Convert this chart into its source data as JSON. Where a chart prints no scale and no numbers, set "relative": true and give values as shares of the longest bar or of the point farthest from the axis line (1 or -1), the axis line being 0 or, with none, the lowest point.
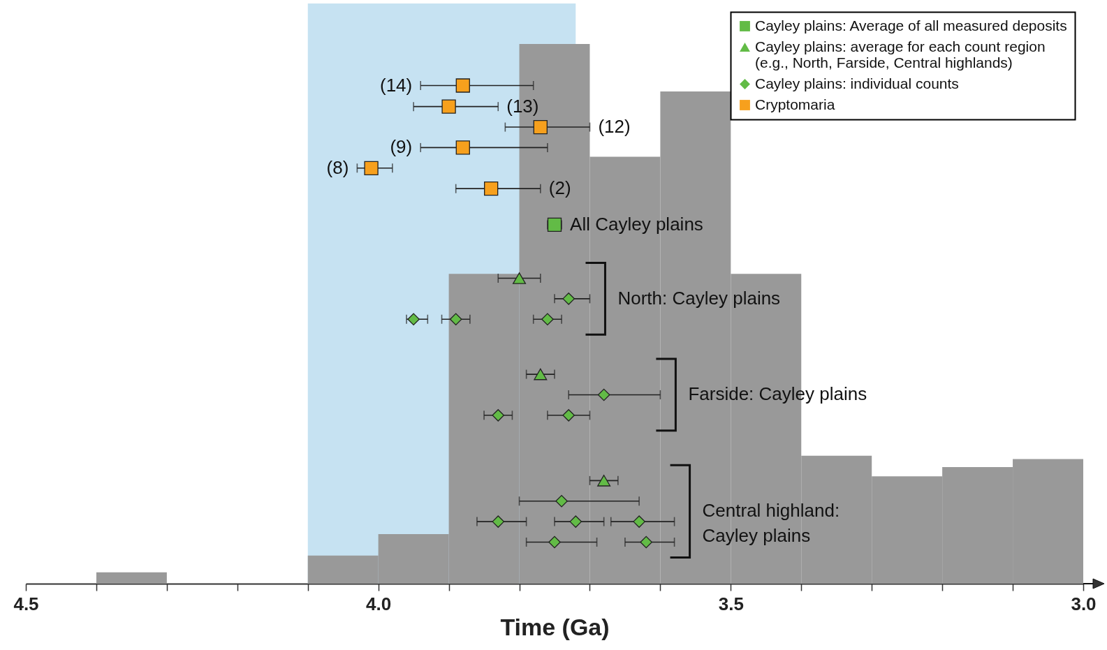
{
  "chart_data": {
    "type": "histogram",
    "xlabel": "Time (Ga)",
    "relative": true,
    "color": "#999999",
    "bins": [
      4.5,
      4.4,
      4.3,
      4.2,
      4.1,
      4.0,
      3.9,
      3.8,
      3.7,
      3.6,
      3.5,
      3.4,
      3.3,
      3.2,
      3.1,
      3.0
    ],
    "values": [
      0,
      0.021,
      0,
      0,
      0.052,
      0.092,
      0.574,
      1,
      0.791,
      0.912,
      0.574,
      0.237,
      0.199,
      0.216,
      0.231
    ],
    "xlim": [
      4.5,
      3.0
    ],
    "xticks": [
      4.5,
      {
        "value": 4.4,
        "label": null
      },
      {
        "value": 4.3,
        "label": null
      },
      {
        "value": 4.2,
        "label": null
      },
      {
        "value": 4.1,
        "label": null
      },
      {
        "value": 4,
        "label": "4.0"
      },
      {
        "value": 3.9,
        "label": null
      },
      {
        "value": 3.8,
        "label": null
      },
      {
        "value": 3.7,
        "label": null
      },
      {
        "value": 3.6,
        "label": null
      },
      3.5,
      {
        "value": 3.4,
        "label": null
      },
      {
        "value": 3.3,
        "label": null
      },
      {
        "value": 3.2,
        "label": null
      },
      {
        "value": 3.1,
        "label": null
      },
      {
        "value": 3,
        "label": "3.0"
      }
    ],
    "bands": [
      {
        "axis": "x",
        "from": 4.1,
        "to": 3.72,
        "color": "#c6e2f2"
      }
    ],
    "legend": "top right",
    "series": [
      {
        "name": "Cayley plains: Average of all measured deposits",
        "type": "scatter",
        "marker": "square",
        "color": "#62bb46",
        "x": [
          3.75
        ],
        "values": [
          0.665
        ],
        "xerrors": [
          0.01
        ]
      },
      {
        "name": "Cayley plains: average for each count region\n(e.g., North, Farside, Central highlands)",
        "type": "scatter",
        "marker": "triangle",
        "color": "#62bb46",
        "x": [
          3.8,
          3.77,
          3.68
        ],
        "values": [
          0.566,
          0.388,
          0.191
        ],
        "xerrors": [
          0.03,
          0.02,
          0.02
        ]
      },
      {
        "name": "Cayley plains: individual counts",
        "type": "scatter",
        "marker": "diamond",
        "color": "#62bb46",
        "x": [
          3.73,
          3.95,
          3.89,
          3.76,
          3.68,
          3.83,
          3.73,
          3.74,
          3.83,
          3.72,
          3.63,
          3.75,
          3.62
        ],
        "values": [
          0.528,
          0.49,
          0.49,
          0.49,
          0.35,
          0.312,
          0.312,
          0.153,
          0.115,
          0.115,
          0.115,
          0.077,
          0.077
        ],
        "xerrors": [
          [
            3.7,
            3.75
          ],
          [
            3.93,
            3.96
          ],
          0.02,
          0.02,
          [
            3.6,
            3.73
          ],
          0.02,
          0.03,
          [
            3.63,
            3.8
          ],
          [
            3.79,
            3.86
          ],
          [
            3.68,
            3.75
          ],
          [
            3.58,
            3.67
          ],
          [
            3.69,
            3.79
          ],
          [
            3.58,
            3.65
          ]
        ]
      },
      {
        "name": "Cryptomaria",
        "type": "scatter",
        "marker": "square",
        "color": "#f7a01d",
        "x": [
          3.88,
          3.9,
          3.77,
          3.88,
          4.01,
          3.84
        ],
        "values": [
          0.923,
          0.884,
          0.846,
          0.808,
          0.77,
          0.732
        ],
        "xerrors": [
          [
            3.78,
            3.94
          ],
          [
            3.83,
            3.95
          ],
          [
            3.7,
            3.82
          ],
          [
            3.76,
            3.94
          ],
          [
            3.98,
            4.03
          ],
          [
            3.77,
            3.89
          ]
        ]
      }
    ],
    "annotations": [
      {
        "text": "(14)",
        "x": 3.94,
        "y": 0.923
      },
      {
        "text": "(13)",
        "x": 3.83,
        "y": 0.884
      },
      {
        "text": "(12)",
        "x": 3.7,
        "y": 0.846
      },
      {
        "text": "(9)",
        "x": 3.94,
        "y": 0.808
      },
      {
        "text": "(8)",
        "x": 4.03,
        "y": 0.77
      },
      {
        "text": "(2)",
        "x": 3.77,
        "y": 0.732
      },
      {
        "text": "All Cayley plains",
        "x": 3.74,
        "y": 0.665
      },
      "North: Cayley plains",
      "Farside: Cayley plains",
      "Central highland:\nCayley plains"
    ]
  }
}
